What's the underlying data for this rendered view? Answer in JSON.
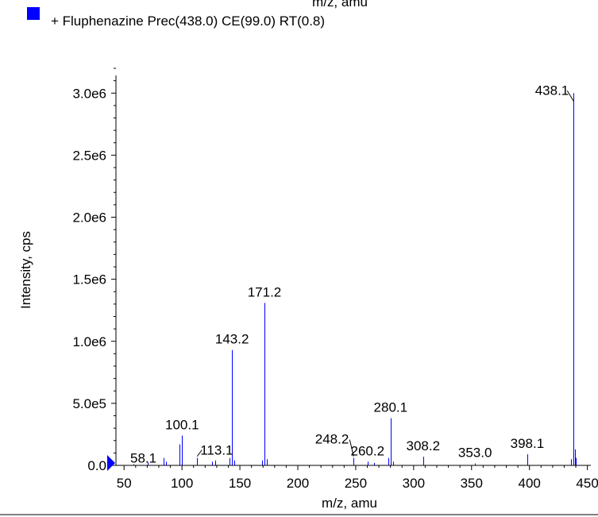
{
  "top_cut_label": "m/z, amu",
  "legend": {
    "label": "+ Fluphenazine Prec(438.0) CE(99.0) RT(0.8)",
    "color": "#0000ff"
  },
  "chart_data": {
    "type": "bar",
    "xlabel": "m/z, amu",
    "ylabel": "Intensity, cps",
    "xlim": [
      43,
      453
    ],
    "ylim": [
      0,
      3200000.0
    ],
    "x_ticks": [
      {
        "v": 50,
        "label": "50"
      },
      {
        "v": 100,
        "label": "100"
      },
      {
        "v": 150,
        "label": "150"
      },
      {
        "v": 200,
        "label": "200"
      },
      {
        "v": 250,
        "label": "250"
      },
      {
        "v": 300,
        "label": "300"
      },
      {
        "v": 350,
        "label": "350"
      },
      {
        "v": 400,
        "label": "400"
      },
      {
        "v": 450,
        "label": "450"
      }
    ],
    "y_ticks": [
      {
        "v": 0,
        "label": "0.0"
      },
      {
        "v": 500000,
        "label": "5.0e5"
      },
      {
        "v": 1000000,
        "label": "1.0e6"
      },
      {
        "v": 1500000,
        "label": "1.5e6"
      },
      {
        "v": 2000000,
        "label": "2.0e6"
      },
      {
        "v": 2500000,
        "label": "2.5e6"
      },
      {
        "v": 3000000,
        "label": "3.0e6"
      }
    ],
    "series_color": "#0000ff",
    "peaks": [
      {
        "mz": 58.1,
        "intensity": 10000
      },
      {
        "mz": 70.1,
        "intensity": 25000
      },
      {
        "mz": 84.0,
        "intensity": 60000
      },
      {
        "mz": 86.0,
        "intensity": 30000
      },
      {
        "mz": 98.0,
        "intensity": 170000
      },
      {
        "mz": 100.1,
        "intensity": 240000
      },
      {
        "mz": 113.1,
        "intensity": 60000
      },
      {
        "mz": 126.0,
        "intensity": 30000
      },
      {
        "mz": 129.0,
        "intensity": 40000
      },
      {
        "mz": 141.0,
        "intensity": 60000
      },
      {
        "mz": 143.2,
        "intensity": 930000
      },
      {
        "mz": 145.0,
        "intensity": 40000
      },
      {
        "mz": 169.0,
        "intensity": 40000
      },
      {
        "mz": 171.2,
        "intensity": 1310000
      },
      {
        "mz": 173.0,
        "intensity": 50000
      },
      {
        "mz": 248.2,
        "intensity": 60000
      },
      {
        "mz": 260.2,
        "intensity": 30000
      },
      {
        "mz": 266.0,
        "intensity": 20000
      },
      {
        "mz": 278.0,
        "intensity": 60000
      },
      {
        "mz": 280.1,
        "intensity": 380000
      },
      {
        "mz": 282.0,
        "intensity": 30000
      },
      {
        "mz": 308.2,
        "intensity": 70000
      },
      {
        "mz": 353.0,
        "intensity": 15000
      },
      {
        "mz": 398.1,
        "intensity": 90000
      },
      {
        "mz": 436.0,
        "intensity": 50000
      },
      {
        "mz": 438.1,
        "intensity": 3000000
      },
      {
        "mz": 439.0,
        "intensity": 130000
      },
      {
        "mz": 440.0,
        "intensity": 60000
      }
    ],
    "peak_labels": [
      {
        "text": "58.1",
        "mz": 58.1,
        "intensity": 10000,
        "leader": false
      },
      {
        "text": "100.1",
        "mz": 100.1,
        "intensity": 240000,
        "leader": false
      },
      {
        "text": "113.1",
        "mz": 113.1,
        "intensity": 60000,
        "leader": true
      },
      {
        "text": "143.2",
        "mz": 143.2,
        "intensity": 930000,
        "leader": false
      },
      {
        "text": "171.2",
        "mz": 171.2,
        "intensity": 1310000,
        "leader": false
      },
      {
        "text": "248.2",
        "mz": 248.2,
        "intensity": 60000,
        "leader": true
      },
      {
        "text": "260.2",
        "mz": 260.2,
        "intensity": 30000,
        "leader": false
      },
      {
        "text": "280.1",
        "mz": 280.1,
        "intensity": 380000,
        "leader": false
      },
      {
        "text": "308.2",
        "mz": 308.2,
        "intensity": 70000,
        "leader": false
      },
      {
        "text": "353.0",
        "mz": 353.0,
        "intensity": 15000,
        "leader": false
      },
      {
        "text": "398.1",
        "mz": 398.1,
        "intensity": 90000,
        "leader": false
      },
      {
        "text": "438.1",
        "mz": 438.1,
        "intensity": 3000000,
        "leader": true
      }
    ]
  }
}
